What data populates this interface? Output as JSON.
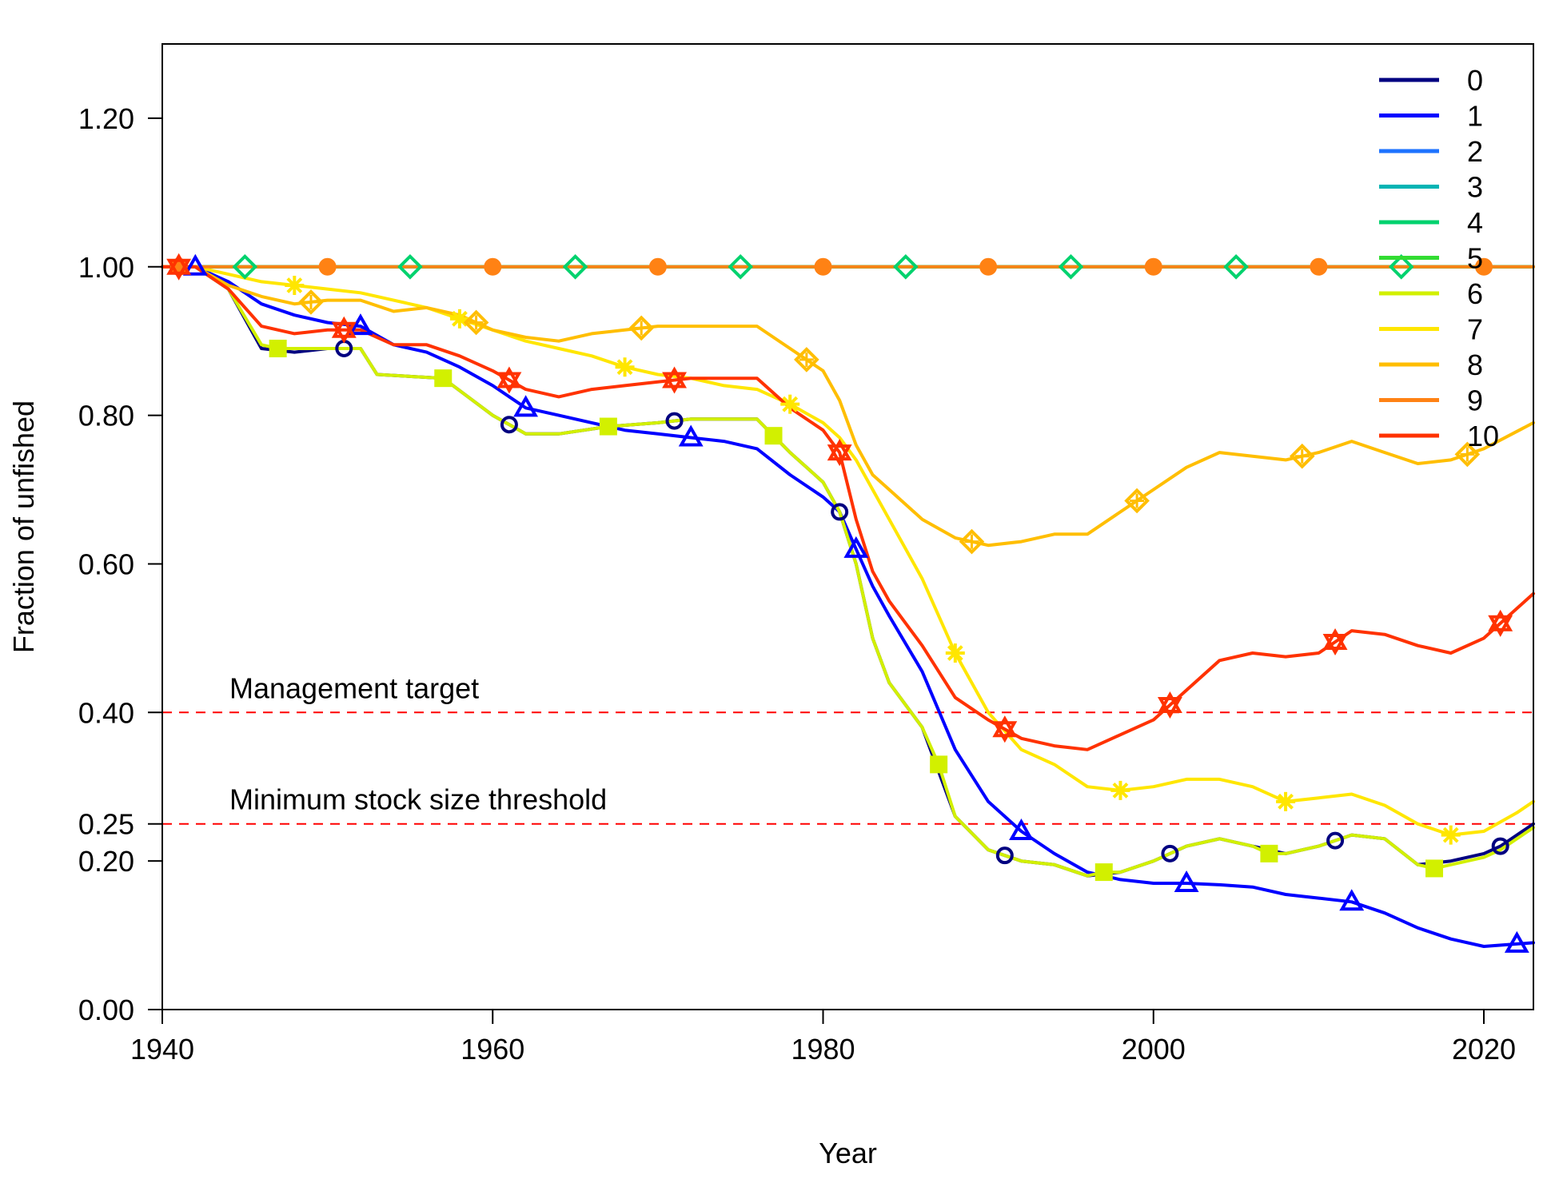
{
  "chart_data": {
    "type": "line",
    "xlabel": "Year",
    "ylabel": "Fraction of unfished",
    "xlim": [
      1940,
      2023
    ],
    "ylim": [
      0,
      1.3
    ],
    "x_ticks": [
      "1940",
      "1960",
      "1980",
      "2000",
      "2020"
    ],
    "y_ticks": [
      "0.00",
      "0.20",
      "0.25",
      "0.40",
      "0.60",
      "0.80",
      "1.00",
      "1.20"
    ],
    "reference_lines": [
      {
        "value": 0.4,
        "label": "Management target",
        "color": "#ff0000"
      },
      {
        "value": 0.25,
        "label": "Minimum stock size threshold",
        "color": "#ff0000"
      }
    ],
    "legend_position": "top-right",
    "legend_entries": [
      "0",
      "1",
      "2",
      "3",
      "4",
      "5",
      "6",
      "7",
      "8",
      "9",
      "10"
    ],
    "series": [
      {
        "name": "0",
        "color": "#000080",
        "marker": "circle",
        "marker_years": [
          1941,
          1951,
          1961,
          1971,
          1981,
          1991,
          2001,
          2011,
          2021
        ],
        "x": [
          1940,
          1941,
          1942,
          1944,
          1946,
          1948,
          1950,
          1952,
          1953,
          1957,
          1960,
          1962,
          1964,
          1967,
          1970,
          1972,
          1974,
          1976,
          1978,
          1980,
          1981,
          1982,
          1983,
          1984,
          1986,
          1988,
          1990,
          1992,
          1994,
          1996,
          1998,
          2000,
          2002,
          2004,
          2006,
          2008,
          2010,
          2012,
          2014,
          2016,
          2018,
          2020,
          2021,
          2023
        ],
        "y": [
          1.0,
          1.0,
          1.0,
          0.97,
          0.89,
          0.885,
          0.89,
          0.89,
          0.855,
          0.85,
          0.8,
          0.775,
          0.775,
          0.785,
          0.79,
          0.795,
          0.795,
          0.795,
          0.75,
          0.71,
          0.67,
          0.6,
          0.5,
          0.44,
          0.38,
          0.26,
          0.215,
          0.2,
          0.195,
          0.18,
          0.185,
          0.2,
          0.22,
          0.23,
          0.22,
          0.21,
          0.22,
          0.235,
          0.23,
          0.195,
          0.2,
          0.21,
          0.22,
          0.25
        ]
      },
      {
        "name": "1",
        "color": "#0000ff",
        "marker": "triangle",
        "marker_years": [
          1942,
          1952,
          1962,
          1972,
          1982,
          1992,
          2002,
          2012,
          2022
        ],
        "x": [
          1940,
          1942,
          1944,
          1946,
          1948,
          1950,
          1952,
          1954,
          1956,
          1958,
          1960,
          1962,
          1964,
          1966,
          1968,
          1970,
          1972,
          1974,
          1976,
          1978,
          1980,
          1981,
          1982,
          1983,
          1984,
          1986,
          1988,
          1990,
          1992,
          1994,
          1996,
          1998,
          2000,
          2002,
          2004,
          2006,
          2008,
          2010,
          2012,
          2014,
          2016,
          2018,
          2020,
          2023
        ],
        "y": [
          1.0,
          1.0,
          0.98,
          0.95,
          0.935,
          0.925,
          0.92,
          0.895,
          0.885,
          0.865,
          0.84,
          0.81,
          0.8,
          0.79,
          0.78,
          0.775,
          0.77,
          0.765,
          0.755,
          0.72,
          0.69,
          0.67,
          0.62,
          0.57,
          0.53,
          0.455,
          0.35,
          0.28,
          0.24,
          0.21,
          0.185,
          0.175,
          0.17,
          0.17,
          0.168,
          0.165,
          0.155,
          0.15,
          0.145,
          0.13,
          0.11,
          0.095,
          0.085,
          0.09
        ]
      },
      {
        "name": "2",
        "color": "#1e73ff",
        "marker": "none",
        "marker_years": [],
        "x": [
          1940,
          2023
        ],
        "y": [
          1.0,
          1.0
        ]
      },
      {
        "name": "3",
        "color": "#00b4b4",
        "marker": "none",
        "marker_years": [],
        "x": [
          1940,
          2023
        ],
        "y": [
          1.0,
          1.0
        ]
      },
      {
        "name": "4",
        "color": "#00d26e",
        "marker": "diamond-open",
        "marker_years": [
          1945,
          1955,
          1965,
          1975,
          1985,
          1995,
          2005,
          2015
        ],
        "x": [
          1940,
          2023
        ],
        "y": [
          1.0,
          1.0
        ]
      },
      {
        "name": "5",
        "color": "#32dc32",
        "marker": "none",
        "marker_years": [],
        "x": [
          1940,
          2023
        ],
        "y": [
          1.0,
          1.0
        ]
      },
      {
        "name": "6",
        "color": "#d2f000",
        "marker": "square",
        "marker_years": [
          1947,
          1957,
          1967,
          1977,
          1987,
          1997,
          2007,
          2017
        ],
        "x": [
          1940,
          1942,
          1944,
          1946,
          1947,
          1950,
          1952,
          1953,
          1957,
          1960,
          1962,
          1964,
          1967,
          1970,
          1972,
          1974,
          1976,
          1978,
          1980,
          1981,
          1982,
          1983,
          1984,
          1986,
          1987,
          1988,
          1990,
          1992,
          1994,
          1996,
          1997,
          1998,
          2000,
          2002,
          2004,
          2006,
          2007,
          2008,
          2010,
          2012,
          2014,
          2016,
          2017,
          2018,
          2020,
          2021,
          2023
        ],
        "y": [
          1.0,
          1.0,
          0.97,
          0.895,
          0.89,
          0.89,
          0.89,
          0.855,
          0.85,
          0.8,
          0.775,
          0.775,
          0.785,
          0.79,
          0.795,
          0.795,
          0.795,
          0.75,
          0.71,
          0.67,
          0.6,
          0.5,
          0.44,
          0.38,
          0.33,
          0.26,
          0.215,
          0.2,
          0.195,
          0.18,
          0.185,
          0.185,
          0.2,
          0.22,
          0.23,
          0.22,
          0.21,
          0.21,
          0.22,
          0.235,
          0.23,
          0.195,
          0.19,
          0.195,
          0.205,
          0.215,
          0.245
        ]
      },
      {
        "name": "7",
        "color": "#ffe600",
        "marker": "asterisk",
        "marker_years": [
          1948,
          1958,
          1968,
          1978,
          1988,
          1998,
          2008,
          2018
        ],
        "x": [
          1940,
          1942,
          1944,
          1946,
          1948,
          1950,
          1952,
          1954,
          1956,
          1958,
          1960,
          1962,
          1964,
          1966,
          1968,
          1970,
          1972,
          1974,
          1976,
          1978,
          1980,
          1981,
          1982,
          1983,
          1984,
          1986,
          1988,
          1990,
          1992,
          1994,
          1996,
          1998,
          2000,
          2002,
          2004,
          2006,
          2008,
          2010,
          2012,
          2014,
          2016,
          2018,
          2020,
          2022,
          2023
        ],
        "y": [
          1.0,
          1.0,
          0.99,
          0.98,
          0.975,
          0.97,
          0.965,
          0.955,
          0.945,
          0.93,
          0.915,
          0.9,
          0.89,
          0.88,
          0.865,
          0.855,
          0.85,
          0.84,
          0.835,
          0.815,
          0.79,
          0.77,
          0.74,
          0.7,
          0.66,
          0.58,
          0.48,
          0.4,
          0.35,
          0.33,
          0.3,
          0.295,
          0.3,
          0.31,
          0.31,
          0.3,
          0.28,
          0.285,
          0.29,
          0.275,
          0.25,
          0.235,
          0.24,
          0.265,
          0.28
        ]
      },
      {
        "name": "8",
        "color": "#ffbe00",
        "marker": "diamond-cross",
        "marker_years": [
          1949,
          1959,
          1969,
          1979,
          1989,
          1999,
          2009,
          2019
        ],
        "x": [
          1940,
          1942,
          1944,
          1946,
          1948,
          1950,
          1952,
          1954,
          1956,
          1958,
          1960,
          1962,
          1964,
          1966,
          1968,
          1970,
          1972,
          1974,
          1976,
          1978,
          1980,
          1981,
          1982,
          1983,
          1984,
          1986,
          1988,
          1990,
          1992,
          1994,
          1996,
          1998,
          2000,
          2002,
          2004,
          2006,
          2008,
          2010,
          2012,
          2014,
          2016,
          2018,
          2020,
          2023
        ],
        "y": [
          1.0,
          1.0,
          0.975,
          0.96,
          0.95,
          0.955,
          0.955,
          0.94,
          0.945,
          0.935,
          0.915,
          0.905,
          0.9,
          0.91,
          0.915,
          0.92,
          0.92,
          0.92,
          0.92,
          0.89,
          0.86,
          0.82,
          0.76,
          0.72,
          0.7,
          0.66,
          0.635,
          0.625,
          0.63,
          0.64,
          0.64,
          0.67,
          0.7,
          0.73,
          0.75,
          0.745,
          0.74,
          0.75,
          0.765,
          0.75,
          0.735,
          0.74,
          0.755,
          0.79
        ]
      },
      {
        "name": "9",
        "color": "#ff8214",
        "marker": "circle-filled",
        "marker_years": [
          1941,
          1950,
          1960,
          1970,
          1980,
          1990,
          2000,
          2010,
          2020
        ],
        "x": [
          1940,
          2023
        ],
        "y": [
          1.0,
          1.0
        ]
      },
      {
        "name": "10",
        "color": "#ff3200",
        "marker": "star-of-david",
        "marker_years": [
          1941,
          1951,
          1961,
          1971,
          1981,
          1991,
          2001,
          2011,
          2021
        ],
        "x": [
          1940,
          1942,
          1944,
          1946,
          1948,
          1950,
          1952,
          1954,
          1956,
          1958,
          1960,
          1962,
          1964,
          1966,
          1968,
          1970,
          1972,
          1974,
          1976,
          1978,
          1980,
          1981,
          1982,
          1983,
          1984,
          1986,
          1988,
          1990,
          1992,
          1994,
          1996,
          1998,
          2000,
          2002,
          2004,
          2006,
          2008,
          2010,
          2012,
          2014,
          2016,
          2018,
          2020,
          2023
        ],
        "y": [
          1.0,
          1.0,
          0.97,
          0.92,
          0.91,
          0.915,
          0.915,
          0.895,
          0.895,
          0.88,
          0.86,
          0.835,
          0.825,
          0.835,
          0.84,
          0.845,
          0.85,
          0.85,
          0.85,
          0.81,
          0.78,
          0.75,
          0.66,
          0.59,
          0.55,
          0.49,
          0.42,
          0.39,
          0.365,
          0.355,
          0.35,
          0.37,
          0.39,
          0.43,
          0.47,
          0.48,
          0.475,
          0.48,
          0.51,
          0.505,
          0.49,
          0.48,
          0.5,
          0.56
        ]
      }
    ]
  }
}
